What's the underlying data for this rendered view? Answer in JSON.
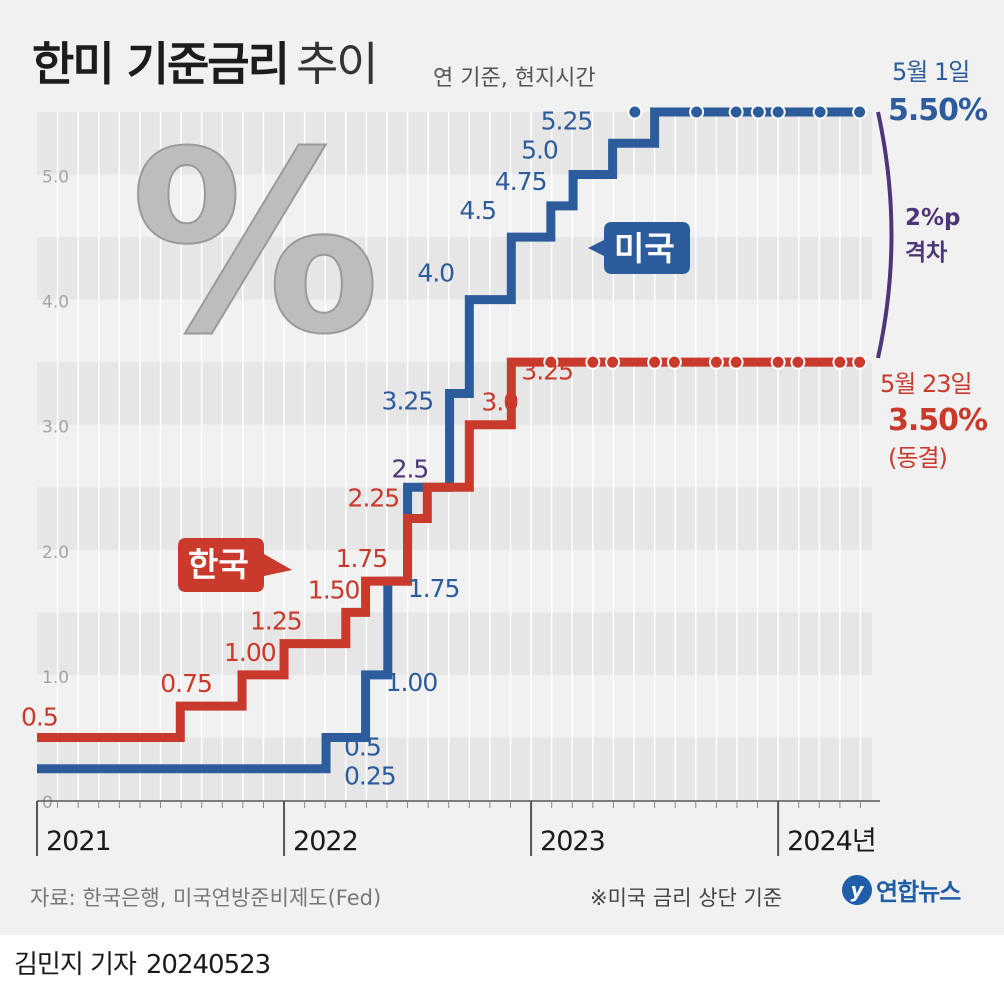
{
  "header": {
    "title_bold": "한미 기준금리",
    "title_light": "추이",
    "subtitle": "연 기준, 현지시간"
  },
  "footer": {
    "source": "자료: 한국은행, 미국연방준비제도(Fed)",
    "note": "※미국 금리 상단 기준",
    "logo_text": "연합뉴스",
    "reporter": "김민지 기자",
    "date": "20240523"
  },
  "colors": {
    "us": "#2c5c9b",
    "korea": "#c93a2c",
    "gap": "#4d3577",
    "band": "#e6e6e6"
  },
  "decoration": {
    "percent_symbol": "%",
    "logo_icon": "yonhap-logo-icon"
  },
  "chart_data": {
    "type": "line",
    "step": true,
    "title": "한미 기준금리 추이",
    "ylim": [
      0,
      5.5
    ],
    "yticks": [
      {
        "value": 0,
        "label": "0"
      },
      {
        "value": 1.0,
        "label": "1.0"
      },
      {
        "value": 2.0,
        "label": "2.0"
      },
      {
        "value": 3.0,
        "label": "3.0"
      },
      {
        "value": 4.0,
        "label": "4.0"
      },
      {
        "value": 5.0,
        "label": "5.0"
      }
    ],
    "xlim": [
      2021.0,
      2024.38
    ],
    "xticks": [
      {
        "value": 2021,
        "label": "2021"
      },
      {
        "value": 2022,
        "label": "2022"
      },
      {
        "value": 2023,
        "label": "2023"
      },
      {
        "value": 2024,
        "label": "2024년"
      }
    ],
    "series": [
      {
        "name": "미국",
        "x": [
          2021.0,
          2022.17,
          2022.33,
          2022.42,
          2022.5,
          2022.67,
          2022.75,
          2022.92,
          2023.08,
          2023.17,
          2023.33,
          2023.42,
          2023.5,
          2024.33
        ],
        "y": [
          0.25,
          0.5,
          1.0,
          1.75,
          2.5,
          3.25,
          4.0,
          4.5,
          4.75,
          5.0,
          5.25,
          5.25,
          5.5,
          5.5
        ],
        "labels": [
          "0.25",
          "0.5",
          "1.00",
          "1.75",
          "2.5",
          "3.25",
          "4.0",
          "4.5",
          "4.75",
          "5.0",
          "5.25",
          "",
          "",
          ""
        ],
        "label_colors": [
          "",
          "",
          "",
          "",
          "#4d3577",
          "",
          "",
          "",
          "",
          "",
          "",
          "",
          "",
          ""
        ],
        "markers": [
          2023.42,
          2023.67,
          2023.83,
          2023.92,
          2024.0,
          2024.17,
          2024.33
        ],
        "end_label": {
          "date": "5월 1일",
          "value": "5.50%"
        }
      },
      {
        "name": "한국",
        "x": [
          2021.0,
          2021.58,
          2021.83,
          2022.0,
          2022.25,
          2022.33,
          2022.5,
          2022.58,
          2022.75,
          2022.92,
          2022.92,
          2024.33
        ],
        "y": [
          0.5,
          0.75,
          1.0,
          1.25,
          1.5,
          1.75,
          2.25,
          2.5,
          3.0,
          3.25,
          3.5,
          3.5
        ],
        "labels": [
          "0.5",
          "0.75",
          "1.00",
          "1.25",
          "1.50",
          "1.75",
          "2.25",
          "",
          "3.0",
          "3.25",
          "",
          ""
        ],
        "label_colors": [],
        "markers": [
          2023.08,
          2023.25,
          2023.33,
          2023.5,
          2023.58,
          2023.75,
          2023.83,
          2024.0,
          2024.08,
          2024.25,
          2024.33
        ],
        "end_label": {
          "date": "5월 23일",
          "value": "3.50%",
          "note": "(동결)"
        }
      }
    ],
    "annotations": [
      {
        "text": "2%p 격차",
        "line1": "2%p",
        "line2": "격차"
      }
    ]
  }
}
